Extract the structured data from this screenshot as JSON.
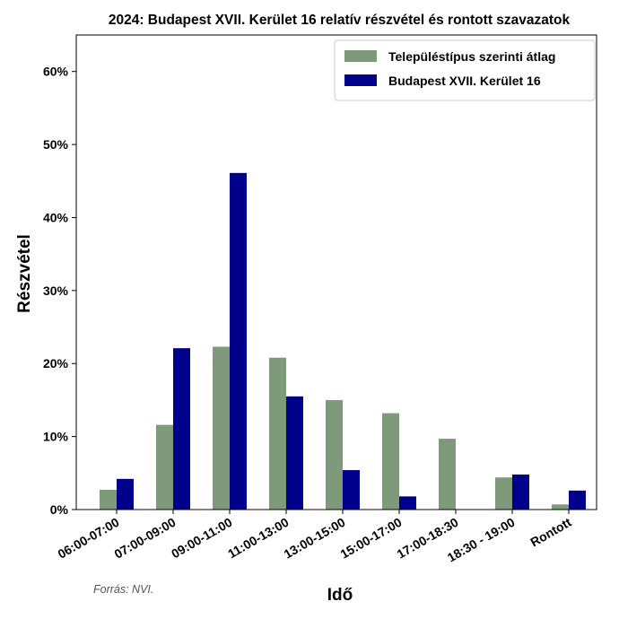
{
  "chart_data": {
    "type": "bar",
    "title": "2024: Budapest XVII. Kerület 16 relatív részvétel és rontott szavazatok",
    "xlabel": "Idő",
    "ylabel": "Részvétel",
    "categories": [
      "06:00-07:00",
      "07:00-09:00",
      "09:00-11:00",
      "11:00-13:00",
      "13:00-15:00",
      "15:00-17:00",
      "17:00-18:30",
      "18:30 - 19:00",
      "Rontott"
    ],
    "series": [
      {
        "name": "Településtípus szerinti átlag",
        "color": "#7e9a7a",
        "values": [
          2.7,
          11.6,
          22.3,
          20.8,
          15.0,
          13.2,
          9.7,
          4.4,
          0.7
        ]
      },
      {
        "name": "Budapest XVII. Kerület 16",
        "color": "#00008b",
        "values": [
          4.2,
          22.1,
          46.1,
          15.5,
          5.4,
          1.8,
          0.0,
          4.8,
          2.6
        ]
      }
    ],
    "ylim": [
      0,
      65
    ],
    "yticks": [
      0,
      10,
      20,
      30,
      40,
      50,
      60
    ],
    "ytick_labels": [
      "0%",
      "10%",
      "20%",
      "30%",
      "40%",
      "50%",
      "60%"
    ],
    "legend_position": "top-right",
    "grid": false
  },
  "source_note": "Forrás: NVI."
}
